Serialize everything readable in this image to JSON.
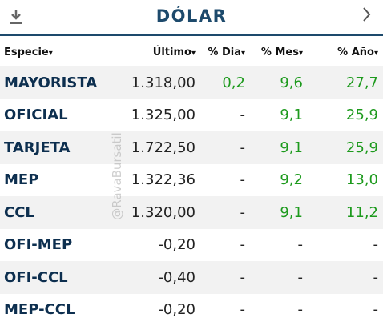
{
  "header": {
    "title": "DÓLAR"
  },
  "watermark": "@RavaBursatil",
  "table": {
    "columns": [
      "Especie",
      "Último",
      "% Dia",
      "% Mes",
      "% Año"
    ],
    "rows": [
      [
        "MAYORISTA",
        "1.318,00",
        "0,2",
        "9,6",
        "27,7"
      ],
      [
        "OFICIAL",
        "1.325,00",
        "-",
        "9,1",
        "25,9"
      ],
      [
        "TARJETA",
        "1.722,50",
        "-",
        "9,1",
        "25,9"
      ],
      [
        "MEP",
        "1.322,36",
        "-",
        "9,2",
        "13,0"
      ],
      [
        "CCL",
        "1.320,00",
        "-",
        "9,1",
        "11,2"
      ],
      [
        "OFI-MEP",
        "-0,20",
        "-",
        "-",
        "-"
      ],
      [
        "OFI-CCL",
        "-0,40",
        "-",
        "-",
        "-"
      ],
      [
        "MEP-CCL",
        "-0,20",
        "-",
        "-",
        "-"
      ]
    ]
  }
}
